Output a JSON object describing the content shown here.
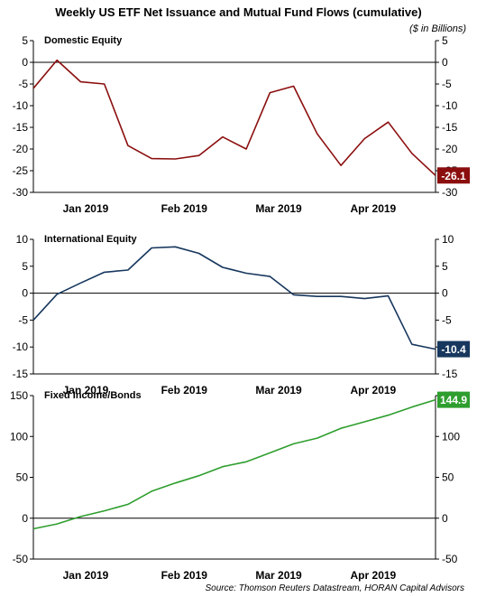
{
  "header": {
    "title": "Weekly US ETF Net Issuance and Mutual Fund Flows (cumulative)",
    "unit_note": "($ in Billions)"
  },
  "footer": {
    "source": "Source: Thomson Reuters Datastream, HORAN Capital Advisors"
  },
  "chart_data": [
    {
      "type": "line",
      "title": "Domestic Equity",
      "xlabel": "",
      "ylabel": "",
      "months": [
        "Jan 2019",
        "Feb 2019",
        "Mar 2019",
        "Apr 2019"
      ],
      "ylim": [
        -30,
        5
      ],
      "yticks": [
        5,
        0,
        -5,
        -10,
        -15,
        -20,
        -25,
        -30
      ],
      "dual_y_axis": true,
      "zero_line": true,
      "grid": false,
      "color": "#8b0e0e",
      "end_label": "-26.1",
      "series": [
        {
          "values": [
            -6.0,
            0.5,
            -4.5,
            -5.0,
            -19.2,
            -22.2,
            -22.3,
            -21.5,
            -17.2,
            -20.0,
            -7.0,
            -5.5,
            -16.5,
            -23.8,
            -17.6,
            -13.8,
            -21.0,
            -26.1
          ]
        }
      ]
    },
    {
      "type": "line",
      "title": "International Equity",
      "xlabel": "",
      "ylabel": "",
      "months": [
        "Jan 2019",
        "Feb 2019",
        "Mar 2019",
        "Apr 2019"
      ],
      "ylim": [
        -15,
        10
      ],
      "yticks": [
        10,
        5,
        0,
        -5,
        -10,
        -15
      ],
      "dual_y_axis": true,
      "zero_line": true,
      "grid": false,
      "color": "#17375e",
      "end_label": "-10.4",
      "series": [
        {
          "values": [
            -5.0,
            -0.2,
            1.9,
            3.9,
            4.3,
            8.4,
            8.6,
            7.4,
            4.8,
            3.7,
            3.1,
            -0.3,
            -0.6,
            -0.6,
            -1.0,
            -0.5,
            -9.5,
            -10.4
          ]
        }
      ]
    },
    {
      "type": "line",
      "title": "Fixed Income/Bonds",
      "xlabel": "",
      "ylabel": "",
      "months": [
        "Jan 2019",
        "Feb 2019",
        "Mar 2019",
        "Apr 2019"
      ],
      "ylim": [
        -50,
        150
      ],
      "yticks": [
        150,
        100,
        50,
        0,
        -50
      ],
      "dual_y_axis": true,
      "zero_line": true,
      "grid": false,
      "color": "#2e9e2e",
      "end_label": "144.9",
      "series": [
        {
          "values": [
            -13,
            -7,
            2,
            9,
            17,
            33,
            43,
            52,
            63,
            69,
            80,
            91,
            98,
            110,
            118,
            126,
            136,
            144.9
          ]
        }
      ]
    }
  ]
}
